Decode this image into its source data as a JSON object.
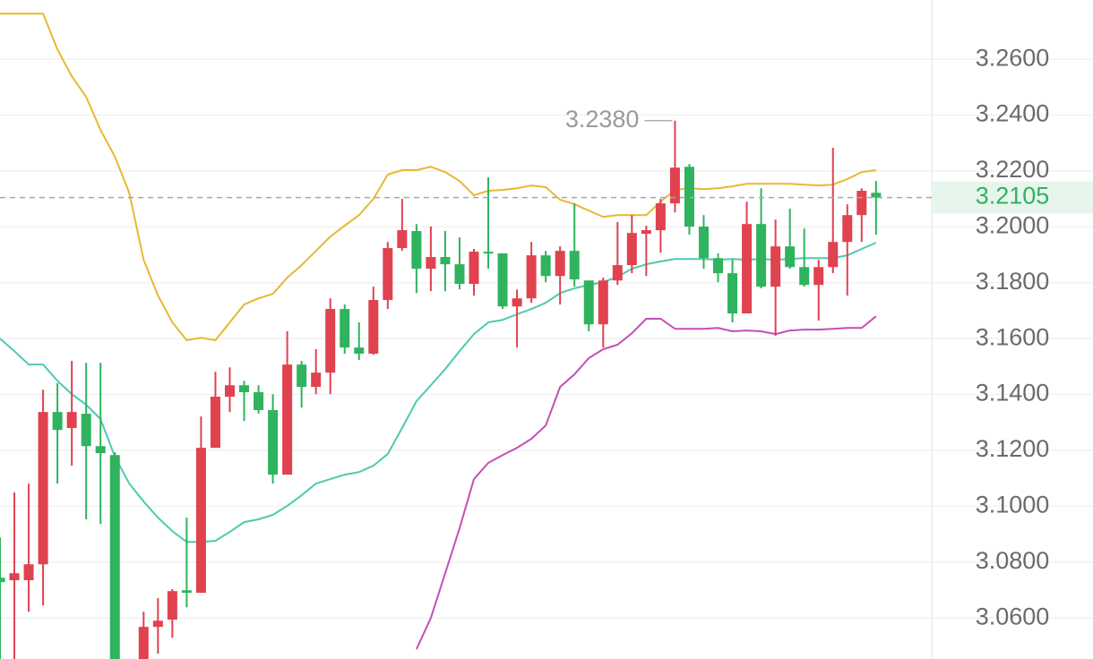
{
  "chart_data": {
    "type": "candlestick",
    "up_color": "#e0424f",
    "down_color": "#2fb35e",
    "candles": {
      "open": [
        3.0744,
        3.0735,
        3.0735,
        3.0792,
        3.1337,
        3.128,
        3.1331,
        3.1215,
        3.1183,
        null,
        3.04,
        3.0568,
        3.0594,
        3.0699,
        3.069,
        3.1209,
        3.1392,
        3.1433,
        3.1408,
        3.1344,
        3.1113,
        3.1507,
        3.1427,
        3.1478,
        3.1706,
        3.1568,
        3.1546,
        3.1738,
        3.1924,
        3.1985,
        3.185,
        3.1892,
        3.1866,
        3.1796,
        3.1911,
        3.1905,
        3.1715,
        3.1744,
        3.1898,
        3.1824,
        3.1914,
        3.1808,
        3.1651,
        3.1808,
        3.1863,
        3.1975,
        3.1988,
        3.2084,
        3.2215,
        3.2001,
        3.1888,
        3.1834,
        3.169,
        3.201,
        3.1786,
        3.193,
        3.1856,
        3.1792,
        3.1856,
        3.1946,
        3.2042,
        3.2122
      ],
      "high": [
        3.0888,
        3.1049,
        3.1081,
        3.1417,
        3.144,
        3.152,
        3.1513,
        3.1513,
        3.1193,
        null,
        3.0622,
        3.0671,
        3.0703,
        3.0959,
        3.1321,
        3.1481,
        3.1497,
        3.1449,
        3.1433,
        3.1401,
        3.1626,
        3.152,
        3.1562,
        3.1744,
        3.1722,
        3.1658,
        3.1786,
        3.1946,
        3.21,
        3.201,
        3.2001,
        3.1985,
        3.1962,
        3.1921,
        3.2177,
        3.1905,
        3.1776,
        3.1946,
        3.1914,
        3.193,
        3.2084,
        3.1808,
        3.1818,
        3.2017,
        3.2042,
        3.2004,
        3.21,
        3.238,
        3.2225,
        3.2042,
        3.1905,
        3.1882,
        3.209,
        3.2138,
        3.2026,
        3.2065,
        3.1994,
        3.1882,
        3.2283,
        3.2081,
        3.2138,
        3.2164
      ],
      "low": [
        3.04,
        3.04,
        3.0622,
        3.0645,
        3.1081,
        3.1145,
        3.0953,
        3.0937,
        3.038,
        null,
        3.038,
        3.0472,
        3.0529,
        3.0638,
        3.069,
        3.1209,
        3.1337,
        3.1305,
        3.1331,
        3.1081,
        3.1113,
        3.1353,
        3.1401,
        3.1401,
        3.1546,
        3.1523,
        3.1542,
        3.1706,
        3.1914,
        3.1763,
        3.177,
        3.177,
        3.1776,
        3.1754,
        3.185,
        3.1706,
        3.1568,
        3.1728,
        3.1802,
        3.1722,
        3.1786,
        3.1626,
        3.1568,
        3.1792,
        3.1834,
        3.1824,
        3.1908,
        3.2052,
        3.1972,
        3.185,
        3.1802,
        3.1658,
        3.169,
        3.178,
        3.161,
        3.185,
        3.1786,
        3.1664,
        3.1834,
        3.1754,
        3.1946,
        3.1972
      ],
      "close": [
        3.0728,
        3.076,
        3.0792,
        3.1337,
        3.1273,
        3.1337,
        3.1215,
        3.119,
        3.04,
        null,
        3.0568,
        3.059,
        3.0696,
        3.069,
        3.1209,
        3.1392,
        3.1433,
        3.1408,
        3.1344,
        3.1113,
        3.1507,
        3.1427,
        3.1478,
        3.1706,
        3.1568,
        3.1546,
        3.1738,
        3.1924,
        3.1988,
        3.185,
        3.1892,
        3.1866,
        3.1796,
        3.1911,
        3.1905,
        3.1715,
        3.1744,
        3.1898,
        3.1824,
        3.1914,
        3.1812,
        3.1651,
        3.1808,
        3.1863,
        3.1978,
        3.1988,
        3.2084,
        3.2212,
        3.2001,
        3.1888,
        3.1834,
        3.169,
        3.201,
        3.1786,
        3.193,
        3.1856,
        3.1792,
        3.1856,
        3.1946,
        3.2042,
        3.2129,
        3.2105
      ]
    },
    "lines": [
      {
        "color": "#e8b830",
        "values": [
          3.2763,
          3.2763,
          3.2763,
          3.2763,
          3.2635,
          3.2539,
          3.2465,
          3.2347,
          3.2251,
          3.2122,
          3.1882,
          3.1754,
          3.1658,
          3.1594,
          3.1603,
          3.1594,
          3.1658,
          3.1722,
          3.1744,
          3.176,
          3.1818,
          3.1863,
          3.1914,
          3.1965,
          3.2004,
          3.2042,
          3.21,
          3.2187,
          3.2203,
          3.2203,
          3.2215,
          3.2196,
          3.2164,
          3.2113,
          3.2129,
          3.2132,
          3.2138,
          3.2148,
          3.2142,
          3.2097,
          3.2081,
          3.2058,
          3.2036,
          3.2042,
          3.2042,
          3.2042,
          3.209,
          3.2132,
          3.2138,
          3.2135,
          3.2138,
          3.2145,
          3.2154,
          3.2154,
          3.2154,
          3.2154,
          3.2151,
          3.2148,
          3.2151,
          3.2171,
          3.2196,
          3.2203
        ]
      },
      {
        "color": "#4fc9b0",
        "values": [
          3.16,
          3.1555,
          3.1507,
          3.1507,
          3.1449,
          3.1401,
          3.1363,
          3.1312,
          3.1177,
          3.1081,
          3.1017,
          3.0959,
          3.0911,
          3.0872,
          3.0872,
          3.0876,
          3.0908,
          3.0943,
          3.0953,
          3.0969,
          3.1001,
          3.1039,
          3.1081,
          3.1097,
          3.1113,
          3.1122,
          3.1145,
          3.1187,
          3.128,
          3.1376,
          3.1433,
          3.1491,
          3.1555,
          3.1616,
          3.1658,
          3.1667,
          3.1687,
          3.1706,
          3.1728,
          3.1763,
          3.178,
          3.1792,
          3.1802,
          3.1821,
          3.185,
          3.1866,
          3.1876,
          3.1885,
          3.1885,
          3.1885,
          3.1882,
          3.1885,
          3.1882,
          3.1885,
          3.1882,
          3.1885,
          3.1888,
          3.1888,
          3.1888,
          3.1898,
          3.1921,
          3.1943
        ]
      },
      {
        "color": "#c54fb5",
        "values": [
          null,
          null,
          null,
          null,
          null,
          null,
          null,
          null,
          null,
          null,
          null,
          null,
          null,
          null,
          null,
          null,
          null,
          null,
          null,
          null,
          null,
          null,
          null,
          null,
          null,
          null,
          null,
          null,
          null,
          3.0488,
          3.06,
          3.076,
          3.0921,
          3.1097,
          3.1155,
          3.1183,
          3.1209,
          3.1241,
          3.1289,
          3.1427,
          3.1472,
          3.153,
          3.1562,
          3.1578,
          3.1619,
          3.1671,
          3.1671,
          3.1635,
          3.1635,
          3.1635,
          3.1638,
          3.1626,
          3.1629,
          3.1626,
          3.1616,
          3.1629,
          3.1632,
          3.1632,
          3.1635,
          3.1638,
          3.1638,
          3.168
        ]
      }
    ],
    "ylim": [
      3.0453,
      3.2812
    ],
    "yticks": [
      {
        "value": 3.06,
        "label": "3.0600"
      },
      {
        "value": 3.08,
        "label": "3.0800"
      },
      {
        "value": 3.1,
        "label": "3.1000"
      },
      {
        "value": 3.12,
        "label": "3.1200"
      },
      {
        "value": 3.14,
        "label": "3.1400"
      },
      {
        "value": 3.16,
        "label": "3.1600"
      },
      {
        "value": 3.18,
        "label": "3.1800"
      },
      {
        "value": 3.2,
        "label": "3.2000"
      },
      {
        "value": 3.22,
        "label": "3.2200"
      },
      {
        "value": 3.24,
        "label": "3.2400"
      },
      {
        "value": 3.26,
        "label": "3.2600"
      }
    ],
    "grid": true,
    "last_price": {
      "value": 3.2105,
      "label": "3.2105"
    },
    "max_marker": {
      "value": 3.238,
      "label": "3.2380"
    }
  }
}
